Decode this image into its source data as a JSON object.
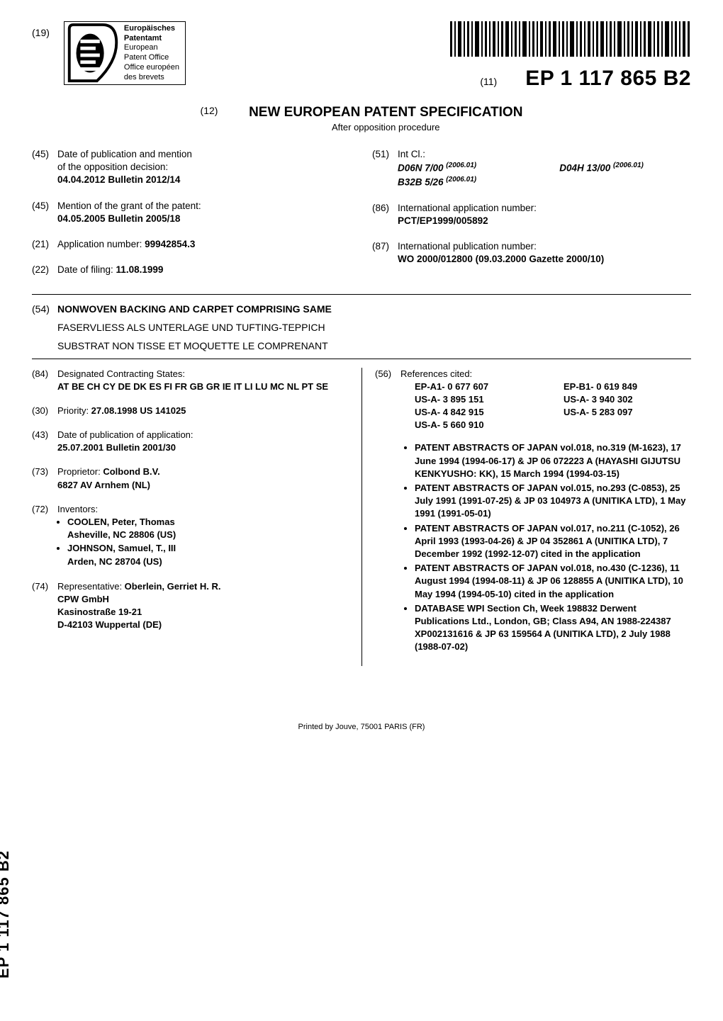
{
  "header": {
    "item19": "(19)",
    "logo_lines": [
      "Europäisches",
      "Patentamt",
      "European",
      "Patent Office",
      "Office européen",
      "des brevets"
    ],
    "item11": "(11)",
    "pub_number": "EP 1 117 865 B2"
  },
  "title_block": {
    "item12": "(12)",
    "main": "NEW EUROPEAN PATENT SPECIFICATION",
    "sub": "After opposition procedure"
  },
  "left_meta": [
    {
      "num": "(45)",
      "lines": [
        "Date of publication and mention",
        "of the opposition decision:"
      ],
      "bold": "04.04.2012  Bulletin 2012/14"
    },
    {
      "num": "(45)",
      "lines": [
        "Mention of the grant of the patent:"
      ],
      "bold": "04.05.2005  Bulletin 2005/18"
    },
    {
      "num": "(21)",
      "lines": [
        "Application number: "
      ],
      "inline_bold": "99942854.3"
    },
    {
      "num": "(22)",
      "lines": [
        "Date of filing: "
      ],
      "inline_bold": "11.08.1999"
    }
  ],
  "right_meta": {
    "intcl": {
      "num": "(51)",
      "label": "Int Cl.:",
      "codes": [
        {
          "c": "D06N 7/00",
          "y": "(2006.01)"
        },
        {
          "c": "D04H 13/00",
          "y": "(2006.01)"
        },
        {
          "c": "B32B 5/26",
          "y": "(2006.01)"
        }
      ]
    },
    "intl_app": {
      "num": "(86)",
      "label": "International application number:",
      "bold": "PCT/EP1999/005892"
    },
    "intl_pub": {
      "num": "(87)",
      "label": "International publication number:",
      "bold": "WO 2000/012800 (09.03.2000 Gazette 2000/10)"
    }
  },
  "titles54": {
    "num": "(54)",
    "t1": "NONWOVEN BACKING AND CARPET COMPRISING SAME",
    "t2": "FASERVLIESS ALS UNTERLAGE UND TUFTING-TEPPICH",
    "t3": "SUBSTRAT NON TISSE ET MOQUETTE LE COMPRENANT"
  },
  "biblio_left": {
    "states": {
      "num": "(84)",
      "label": "Designated Contracting States:",
      "bold": "AT BE CH CY DE DK ES FI FR GB GR IE IT LI LU MC NL PT SE"
    },
    "priority": {
      "num": "(30)",
      "label": "Priority: ",
      "bold": "27.08.1998  US 141025"
    },
    "pubapp": {
      "num": "(43)",
      "label": "Date of publication of application:",
      "bold": "25.07.2001  Bulletin 2001/30"
    },
    "proprietor": {
      "num": "(73)",
      "label": "Proprietor: ",
      "bold_lines": [
        "Colbond B.V.",
        "6827 AV  Arnhem (NL)"
      ]
    },
    "inventors": {
      "num": "(72)",
      "label": "Inventors:",
      "list": [
        [
          "COOLEN, Peter, Thomas",
          "Asheville, NC 28806 (US)"
        ],
        [
          "JOHNSON, Samuel, T., III",
          "Arden, NC 28704 (US)"
        ]
      ]
    },
    "rep": {
      "num": "(74)",
      "label": "Representative: ",
      "bold_lines": [
        "Oberlein, Gerriet H. R.",
        "CPW GmbH",
        "Kasinostraße 19-21",
        "D-42103 Wuppertal (DE)"
      ]
    }
  },
  "biblio_right": {
    "refs": {
      "num": "(56)",
      "label": "References cited:",
      "pairs": [
        [
          "EP-A1- 0 677 607",
          "EP-B1- 0 619 849"
        ],
        [
          "US-A- 3 895 151",
          "US-A- 3 940 302"
        ],
        [
          "US-A- 4 842 915",
          "US-A- 5 283 097"
        ],
        [
          "US-A- 5 660 910",
          ""
        ]
      ]
    },
    "npl": [
      "PATENT ABSTRACTS OF JAPAN vol.018, no.319 (M-1623), 17 June 1994 (1994-06-17) & JP 06 072223 A (HAYASHI GIJUTSU KENKYUSHO: KK), 15 March 1994 (1994-03-15)",
      "PATENT ABSTRACTS OF JAPAN vol.015, no.293 (C-0853), 25 July 1991 (1991-07-25) & JP 03 104973 A (UNITIKA LTD), 1 May 1991 (1991-05-01)",
      "PATENT ABSTRACTS OF JAPAN vol.017, no.211 (C-1052), 26 April 1993 (1993-04-26) & JP 04 352861 A (UNITIKA LTD), 7 December 1992 (1992-12-07) cited in the application",
      "PATENT ABSTRACTS OF JAPAN vol.018, no.430 (C-1236), 11 August 1994 (1994-08-11) & JP 06 128855 A (UNITIKA LTD), 10 May 1994 (1994-05-10) cited in the application",
      "DATABASE WPI Section Ch, Week 198832 Derwent Publications Ltd., London, GB; Class A94, AN 1988-224387 XP002131616 & JP 63 159564 A (UNITIKA LTD), 2 July 1988 (1988-07-02)"
    ]
  },
  "spine": "EP 1 117 865 B2",
  "footer": "Printed by Jouve, 75001 PARIS (FR)",
  "colors": {
    "text": "#000000",
    "bg": "#ffffff",
    "rule": "#000000"
  }
}
